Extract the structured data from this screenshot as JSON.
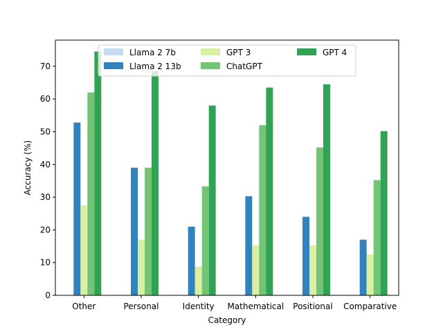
{
  "chart_data": {
    "type": "bar",
    "title": "",
    "xlabel": "Category",
    "ylabel": "Accuracy (%)",
    "ylim": [
      0,
      78
    ],
    "yticks": [
      0,
      10,
      20,
      30,
      40,
      50,
      60,
      70
    ],
    "categories": [
      "Other",
      "Personal",
      "Identity",
      "Mathematical",
      "Positional",
      "Comparative"
    ],
    "series": [
      {
        "name": "Llama 2 7b",
        "color": "#c6dbef",
        "values": [
          0,
          0,
          0,
          0,
          0,
          0
        ]
      },
      {
        "name": "Llama 2 13b",
        "color": "#3182bd",
        "values": [
          52.8,
          39.0,
          21.0,
          30.3,
          24.0,
          17.0
        ]
      },
      {
        "name": "GPT 3",
        "color": "#d9f0a3",
        "values": [
          27.5,
          17.0,
          8.8,
          15.3,
          15.3,
          12.5
        ]
      },
      {
        "name": "ChatGPT",
        "color": "#74c476",
        "values": [
          62.0,
          39.0,
          33.3,
          52.0,
          45.2,
          35.2
        ]
      },
      {
        "name": "GPT 4",
        "color": "#31a354",
        "values": [
          74.5,
          68.5,
          58.0,
          63.5,
          64.5,
          50.2
        ]
      }
    ],
    "legend": {
      "position": "upper-center",
      "columns": 3
    }
  }
}
